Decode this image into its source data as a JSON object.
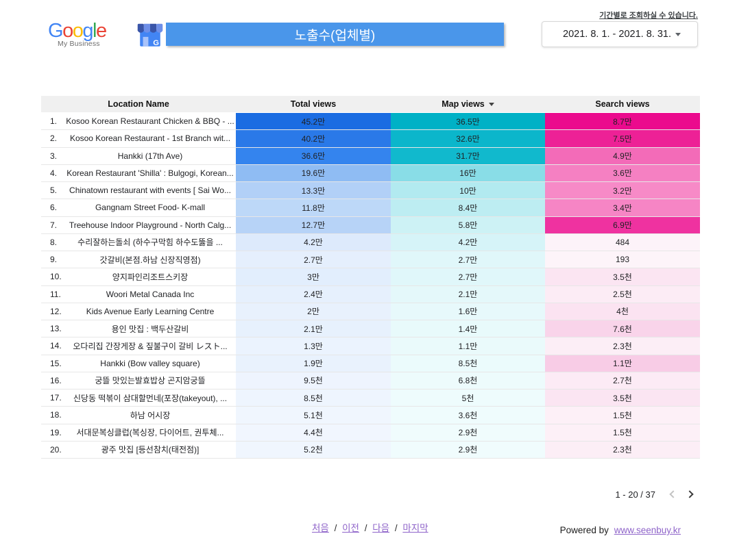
{
  "header": {
    "period_hint": "기간별로 조회하실 수 있습니다.",
    "date_range": "2021. 8. 1. - 2021. 8. 31.",
    "title": "노출수(업체별)",
    "title_bg": "#4a96ea",
    "logo_subtitle": "My Business",
    "logo_letters": [
      {
        "ch": "G",
        "color": "#4285F4"
      },
      {
        "ch": "o",
        "color": "#EA4335"
      },
      {
        "ch": "o",
        "color": "#FBBC05"
      },
      {
        "ch": "g",
        "color": "#4285F4"
      },
      {
        "ch": "l",
        "color": "#34A853"
      },
      {
        "ch": "e",
        "color": "#EA4335"
      }
    ]
  },
  "table": {
    "columns": [
      {
        "label": "Location Name"
      },
      {
        "label": "Total views"
      },
      {
        "label": "Map views",
        "sort": "desc"
      },
      {
        "label": "Search views"
      }
    ],
    "rows": [
      {
        "rank": "1.",
        "name": "Kosoo Korean Restaurant Chicken & BBQ - ...",
        "total": "45.2만",
        "map": "36.5만",
        "search": "8.7만",
        "colors": {
          "total": "#1a6ce2",
          "map": "#00b1c6",
          "search": "#eb0a8d"
        }
      },
      {
        "rank": "2.",
        "name": "Kosoo Korean Restaurant - 1st Branch wit...",
        "total": "40.2만",
        "map": "32.6만",
        "search": "7.5만",
        "colors": {
          "total": "#2a79e8",
          "map": "#0bb6cb",
          "search": "#ed2196"
        }
      },
      {
        "rank": "3.",
        "name": "Hankki (17th Ave)",
        "total": "36.6만",
        "map": "31.7만",
        "search": "4.9만",
        "colors": {
          "total": "#3484ee",
          "map": "#11b9cd",
          "search": "#f36bb8"
        }
      },
      {
        "rank": "4.",
        "name": "Korean Restaurant 'Shilla' : Bulgogi, Korean...",
        "total": "19.6만",
        "map": "16만",
        "search": "3.6만",
        "colors": {
          "total": "#8fbcf3",
          "map": "#89dde7",
          "search": "#f580c2"
        }
      },
      {
        "rank": "5.",
        "name": "Chinatown restaurant with events [ Sai Wo...",
        "total": "13.3만",
        "map": "10만",
        "search": "3.2만",
        "colors": {
          "total": "#b2d0f7",
          "map": "#b2eaf0",
          "search": "#f78ac7"
        }
      },
      {
        "rank": "6.",
        "name": "Gangnam Street Food- K-mall",
        "total": "11.8만",
        "map": "8.4만",
        "search": "3.4만",
        "colors": {
          "total": "#bdd8f8",
          "map": "#bdedf2",
          "search": "#f685c5"
        }
      },
      {
        "rank": "7.",
        "name": "Treehouse Indoor Playground - North Calg...",
        "total": "12.7만",
        "map": "5.8만",
        "search": "6.9만",
        "colors": {
          "total": "#b7d3f7",
          "map": "#cdf2f5",
          "search": "#ef32a0"
        }
      },
      {
        "rank": "8.",
        "name": "수리잘하는돌쇠 (하수구막힘 하수도뚫을 ...",
        "total": "4.2만",
        "map": "4.2만",
        "search": "484",
        "colors": {
          "total": "#ddeafc",
          "map": "#d6f4f8",
          "search": "#fdf3f9"
        }
      },
      {
        "rank": "9.",
        "name": "갓갈비(본점.하남 신장직영점)",
        "total": "2.7만",
        "map": "2.7만",
        "search": "193",
        "colors": {
          "total": "#e5effd",
          "map": "#e0f7fa",
          "search": "#fdf4f9"
        }
      },
      {
        "rank": "10.",
        "name": "양지파인리조트스키장",
        "total": "3만",
        "map": "2.7만",
        "search": "3.5천",
        "colors": {
          "total": "#e2eefd",
          "map": "#e0f7fa",
          "search": "#fbe5f2"
        }
      },
      {
        "rank": "11.",
        "name": "Woori Metal Canada Inc",
        "total": "2.4만",
        "map": "2.1만",
        "search": "2.5천",
        "colors": {
          "total": "#e6f0fd",
          "map": "#e4f8fa",
          "search": "#fcecf5"
        }
      },
      {
        "rank": "12.",
        "name": "Kids Avenue Early Learning Centre",
        "total": "2만",
        "map": "1.6만",
        "search": "4천",
        "colors": {
          "total": "#e8f1fd",
          "map": "#e7f9fb",
          "search": "#fbe3f1"
        }
      },
      {
        "rank": "13.",
        "name": "용인 맛집 : 백두산갈비",
        "total": "2.1만",
        "map": "1.4만",
        "search": "7.6천",
        "colors": {
          "total": "#e7f1fd",
          "map": "#e8fafb",
          "search": "#f9d4ea"
        }
      },
      {
        "rank": "14.",
        "name": "오다리집 간장게장 & 짚불구이 갈비 レスト...",
        "total": "1.3만",
        "map": "1.1만",
        "search": "2.3천",
        "colors": {
          "total": "#ebf3fe",
          "map": "#eafafb",
          "search": "#fceef6"
        }
      },
      {
        "rank": "15.",
        "name": "Hankki (Bow valley square)",
        "total": "1.9만",
        "map": "8.5천",
        "search": "1.1만",
        "colors": {
          "total": "#e9f2fd",
          "map": "#ebfbfc",
          "search": "#f8cce6"
        }
      },
      {
        "rank": "16.",
        "name": "궁뜰 맛있는발효밥상 곤지암궁뜰",
        "total": "9.5천",
        "map": "6.8천",
        "search": "2.7천",
        "colors": {
          "total": "#eef4fe",
          "map": "#edfbfc",
          "search": "#fcebf5"
        }
      },
      {
        "rank": "17.",
        "name": "신당동 떡볶이 삼대할먼네(포장(takeyout), ...",
        "total": "8.5천",
        "map": "5천",
        "search": "3.5천",
        "colors": {
          "total": "#eef5fe",
          "map": "#eefcfd",
          "search": "#fbe5f2"
        }
      },
      {
        "rank": "18.",
        "name": "하남 어시장",
        "total": "5.1천",
        "map": "3.6천",
        "search": "1.5천",
        "colors": {
          "total": "#f0f6fe",
          "map": "#effcfd",
          "search": "#fdf0f7"
        }
      },
      {
        "rank": "19.",
        "name": "서대문복싱클럽(복싱장, 다이어트, 권투체...",
        "total": "4.4천",
        "map": "2.9천",
        "search": "1.5천",
        "colors": {
          "total": "#f1f6fe",
          "map": "#f0fcfd",
          "search": "#fdf0f7"
        }
      },
      {
        "rank": "20.",
        "name": "광주 맛집 [등선참치(태전점)]",
        "total": "5.2천",
        "map": "2.9천",
        "search": "2.3천",
        "colors": {
          "total": "#f0f6fe",
          "map": "#f0fcfd",
          "search": "#fceef6"
        }
      }
    ]
  },
  "pagination": {
    "range": "1 - 20 / 37"
  },
  "footer": {
    "links": [
      "처음",
      "이전",
      "다음",
      "마지막"
    ],
    "separator": "/",
    "link_color": "#8e63c9",
    "powered_by": "Powered by",
    "powered_link": "www.seenbuy.kr"
  }
}
